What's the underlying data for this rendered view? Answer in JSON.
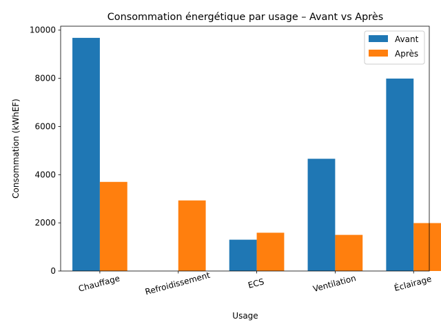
{
  "chart_data": {
    "type": "bar",
    "title": "Consommation énergétique par usage – Avant vs Après",
    "xlabel": "Usage",
    "ylabel": "Consommation (kWhEF)",
    "categories": [
      "Chauffage",
      "Refroidissement",
      "ECS",
      "Ventilation",
      "Éclairage"
    ],
    "series": [
      {
        "name": "Avant",
        "color": "#1f77b4",
        "values": [
          9680,
          0,
          1300,
          4660,
          7990
        ]
      },
      {
        "name": "Après",
        "color": "#ff7f0e",
        "values": [
          3700,
          2930,
          1590,
          1500,
          1990
        ]
      }
    ],
    "ylim": [
      0,
      10164
    ],
    "yticks": [
      0,
      2000,
      4000,
      6000,
      8000,
      10000
    ],
    "grid": false,
    "legend_position": "top-right"
  }
}
